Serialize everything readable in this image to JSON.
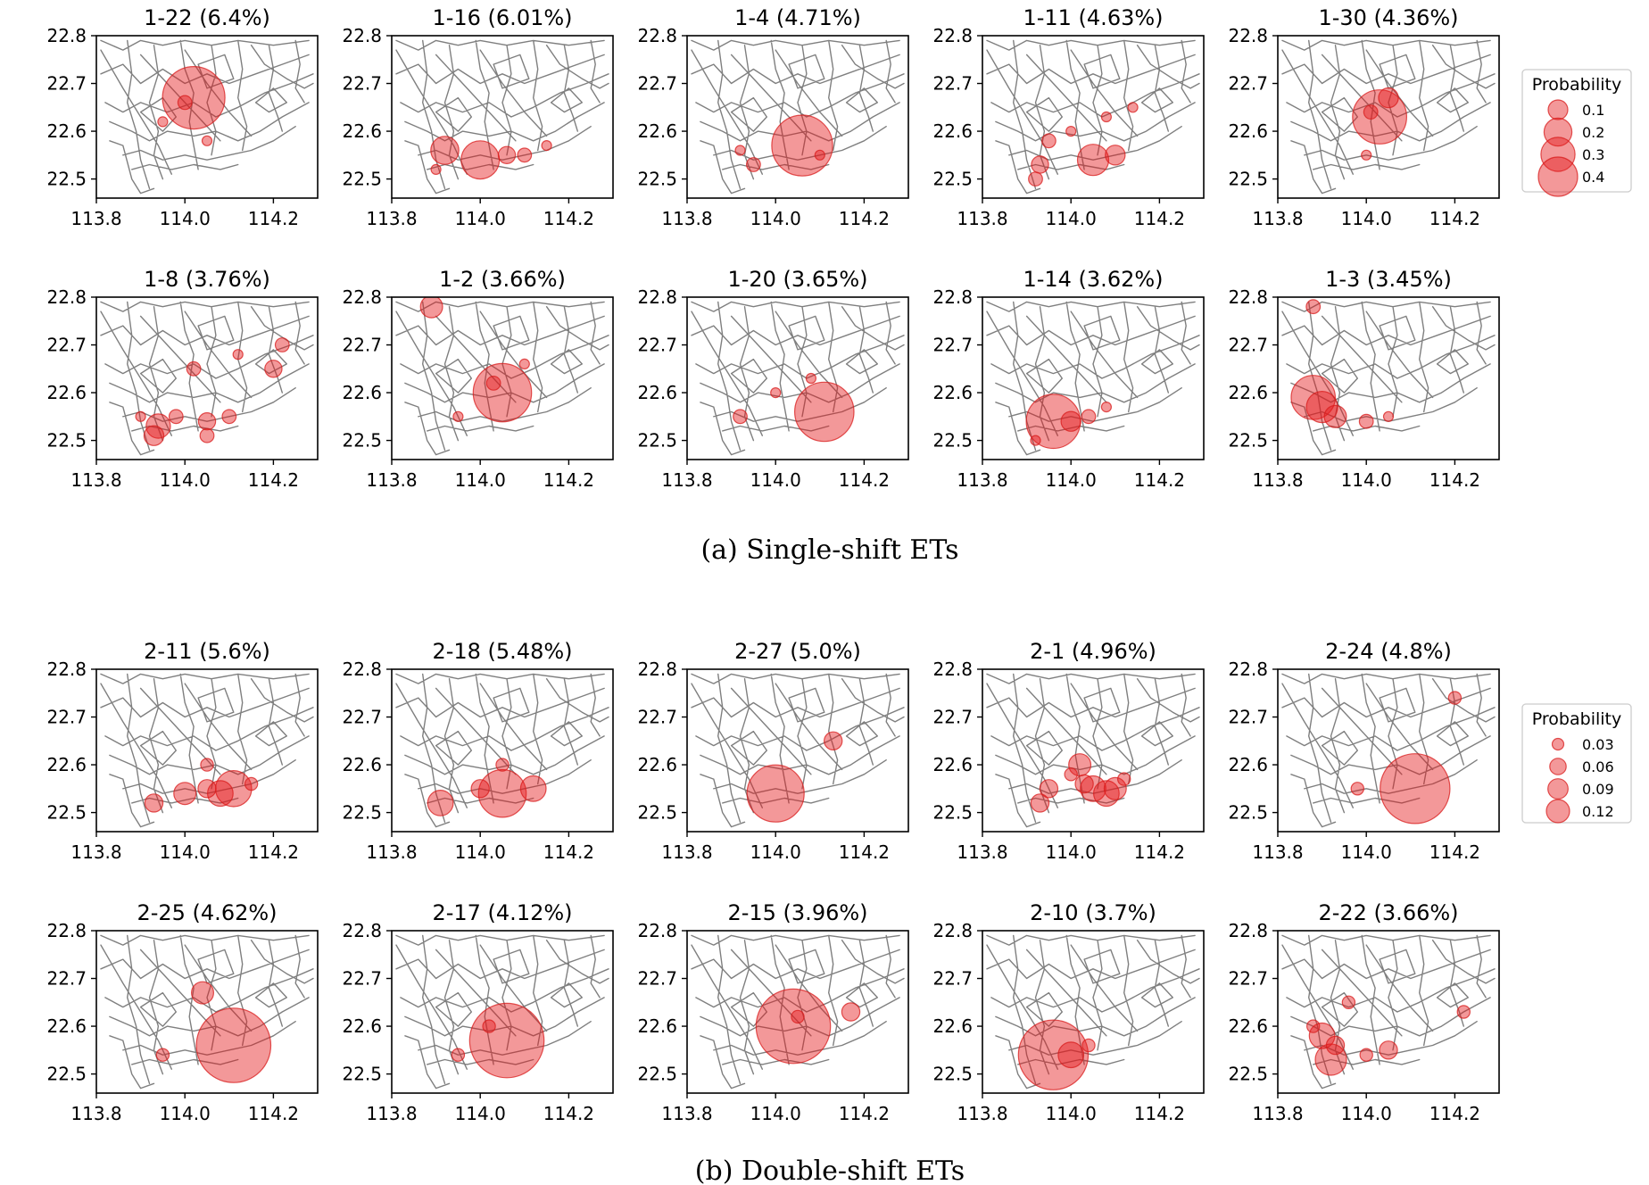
{
  "colors": {
    "bubble": "#e41a1c",
    "road": "#7f7f7f",
    "frame": "#000000"
  },
  "axes": {
    "x_ticks": [
      "113.8",
      "114.0",
      "114.2"
    ],
    "y_ticks": [
      "22.8",
      "22.7",
      "22.6",
      "22.5"
    ],
    "x_values": [
      113.8,
      114.0,
      114.2
    ],
    "y_values": [
      22.8,
      22.7,
      22.6,
      22.5
    ],
    "xlim": [
      113.8,
      114.3
    ],
    "ylim": [
      22.46,
      22.8
    ]
  },
  "captions": {
    "single": "(a) Single-shift ETs",
    "double": "(b) Double-shift ETs"
  },
  "legends": [
    {
      "title": "Probability",
      "labels": [
        "0.1",
        "0.2",
        "0.3",
        "0.4"
      ],
      "values": [
        0.1,
        0.2,
        0.3,
        0.4
      ]
    },
    {
      "title": "Probability",
      "labels": [
        "0.03",
        "0.06",
        "0.09",
        "0.12"
      ],
      "values": [
        0.03,
        0.06,
        0.09,
        0.12
      ]
    }
  ],
  "chart_data": [
    {
      "type": "scatter",
      "group": "single",
      "title": "1-22 (6.4%)",
      "points": [
        [
          114.02,
          22.67,
          0.4
        ],
        [
          114.0,
          22.66,
          0.02
        ],
        [
          113.95,
          22.62,
          0.01
        ],
        [
          114.05,
          22.58,
          0.01
        ]
      ]
    },
    {
      "type": "scatter",
      "group": "single",
      "title": "1-16 (6.01%)",
      "points": [
        [
          114.0,
          22.54,
          0.15
        ],
        [
          113.92,
          22.56,
          0.08
        ],
        [
          114.06,
          22.55,
          0.03
        ],
        [
          114.1,
          22.55,
          0.02
        ],
        [
          113.9,
          22.52,
          0.01
        ],
        [
          114.15,
          22.57,
          0.01
        ]
      ]
    },
    {
      "type": "scatter",
      "group": "single",
      "title": "1-4 (4.71%)",
      "points": [
        [
          114.06,
          22.57,
          0.38
        ],
        [
          113.95,
          22.53,
          0.02
        ],
        [
          114.1,
          22.55,
          0.01
        ],
        [
          113.92,
          22.56,
          0.01
        ]
      ]
    },
    {
      "type": "scatter",
      "group": "single",
      "title": "1-11 (4.63%)",
      "points": [
        [
          114.05,
          22.54,
          0.1
        ],
        [
          114.1,
          22.55,
          0.04
        ],
        [
          113.93,
          22.53,
          0.03
        ],
        [
          113.95,
          22.58,
          0.02
        ],
        [
          113.92,
          22.5,
          0.02
        ],
        [
          114.0,
          22.6,
          0.01
        ],
        [
          114.08,
          22.63,
          0.01
        ],
        [
          114.14,
          22.65,
          0.01
        ]
      ]
    },
    {
      "type": "scatter",
      "group": "single",
      "title": "1-30 (4.36%)",
      "points": [
        [
          114.03,
          22.63,
          0.3
        ],
        [
          114.05,
          22.67,
          0.04
        ],
        [
          114.01,
          22.64,
          0.02
        ],
        [
          114.0,
          22.55,
          0.01
        ]
      ]
    },
    {
      "type": "scatter",
      "group": "single",
      "title": "1-8 (3.76%)",
      "points": [
        [
          113.94,
          22.53,
          0.06
        ],
        [
          113.93,
          22.51,
          0.04
        ],
        [
          114.05,
          22.54,
          0.03
        ],
        [
          114.2,
          22.65,
          0.03
        ],
        [
          114.1,
          22.55,
          0.02
        ],
        [
          114.02,
          22.65,
          0.02
        ],
        [
          113.98,
          22.55,
          0.02
        ],
        [
          114.05,
          22.51,
          0.02
        ],
        [
          114.22,
          22.7,
          0.02
        ],
        [
          113.9,
          22.55,
          0.01
        ],
        [
          114.12,
          22.68,
          0.01
        ]
      ]
    },
    {
      "type": "scatter",
      "group": "single",
      "title": "1-2 (3.66%)",
      "points": [
        [
          114.05,
          22.6,
          0.35
        ],
        [
          113.89,
          22.78,
          0.05
        ],
        [
          114.03,
          22.62,
          0.02
        ],
        [
          113.95,
          22.55,
          0.01
        ],
        [
          114.1,
          22.66,
          0.01
        ]
      ]
    },
    {
      "type": "scatter",
      "group": "single",
      "title": "1-20 (3.65%)",
      "points": [
        [
          114.11,
          22.56,
          0.36
        ],
        [
          113.92,
          22.55,
          0.02
        ],
        [
          114.0,
          22.6,
          0.01
        ],
        [
          114.08,
          22.63,
          0.01
        ]
      ]
    },
    {
      "type": "scatter",
      "group": "single",
      "title": "1-14 (3.62%)",
      "points": [
        [
          113.96,
          22.54,
          0.3
        ],
        [
          114.0,
          22.54,
          0.04
        ],
        [
          114.04,
          22.55,
          0.02
        ],
        [
          114.08,
          22.57,
          0.01
        ],
        [
          113.92,
          22.5,
          0.01
        ]
      ]
    },
    {
      "type": "scatter",
      "group": "single",
      "title": "1-3 (3.45%)",
      "points": [
        [
          113.88,
          22.59,
          0.2
        ],
        [
          113.9,
          22.57,
          0.1
        ],
        [
          113.93,
          22.55,
          0.05
        ],
        [
          114.0,
          22.54,
          0.02
        ],
        [
          113.88,
          22.78,
          0.02
        ],
        [
          114.05,
          22.55,
          0.01
        ]
      ]
    },
    {
      "type": "scatter",
      "group": "double",
      "title": "2-11 (5.6%)",
      "points": [
        [
          114.11,
          22.55,
          0.04
        ],
        [
          114.08,
          22.54,
          0.02
        ],
        [
          114.0,
          22.54,
          0.015
        ],
        [
          114.05,
          22.55,
          0.01
        ],
        [
          113.93,
          22.52,
          0.01
        ],
        [
          114.15,
          22.56,
          0.005
        ],
        [
          114.05,
          22.6,
          0.005
        ]
      ]
    },
    {
      "type": "scatter",
      "group": "double",
      "title": "2-18 (5.48%)",
      "points": [
        [
          114.05,
          22.54,
          0.07
        ],
        [
          114.12,
          22.55,
          0.02
        ],
        [
          113.91,
          22.52,
          0.02
        ],
        [
          114.0,
          22.55,
          0.01
        ],
        [
          114.05,
          22.6,
          0.005
        ]
      ]
    },
    {
      "type": "scatter",
      "group": "double",
      "title": "2-27 (5.0%)",
      "points": [
        [
          114.0,
          22.54,
          0.1
        ],
        [
          114.13,
          22.65,
          0.01
        ]
      ]
    },
    {
      "type": "scatter",
      "group": "double",
      "title": "2-1 (4.96%)",
      "points": [
        [
          114.05,
          22.55,
          0.02
        ],
        [
          114.08,
          22.54,
          0.02
        ],
        [
          114.1,
          22.55,
          0.015
        ],
        [
          114.02,
          22.6,
          0.015
        ],
        [
          113.95,
          22.55,
          0.01
        ],
        [
          113.93,
          22.52,
          0.01
        ],
        [
          114.03,
          22.56,
          0.01
        ],
        [
          114.0,
          22.58,
          0.005
        ],
        [
          114.12,
          22.57,
          0.005
        ]
      ]
    },
    {
      "type": "scatter",
      "group": "double",
      "title": "2-24 (4.8%)",
      "points": [
        [
          114.11,
          22.55,
          0.15
        ],
        [
          114.2,
          22.74,
          0.005
        ],
        [
          113.98,
          22.55,
          0.005
        ]
      ]
    },
    {
      "type": "scatter",
      "group": "double",
      "title": "2-25 (4.62%)",
      "points": [
        [
          114.11,
          22.56,
          0.17
        ],
        [
          114.04,
          22.67,
          0.015
        ],
        [
          113.95,
          22.54,
          0.005
        ]
      ]
    },
    {
      "type": "scatter",
      "group": "double",
      "title": "2-17 (4.12%)",
      "points": [
        [
          114.06,
          22.57,
          0.17
        ],
        [
          114.02,
          22.6,
          0.005
        ],
        [
          113.95,
          22.54,
          0.005
        ]
      ]
    },
    {
      "type": "scatter",
      "group": "double",
      "title": "2-15 (3.96%)",
      "points": [
        [
          114.04,
          22.6,
          0.17
        ],
        [
          114.17,
          22.63,
          0.01
        ],
        [
          114.05,
          22.62,
          0.005
        ]
      ]
    },
    {
      "type": "scatter",
      "group": "double",
      "title": "2-10 (3.7%)",
      "points": [
        [
          113.96,
          22.54,
          0.15
        ],
        [
          114.0,
          22.54,
          0.02
        ],
        [
          114.04,
          22.56,
          0.005
        ]
      ]
    },
    {
      "type": "scatter",
      "group": "double",
      "title": "2-22 (3.66%)",
      "points": [
        [
          113.92,
          22.53,
          0.03
        ],
        [
          113.9,
          22.58,
          0.02
        ],
        [
          113.93,
          22.56,
          0.01
        ],
        [
          114.05,
          22.55,
          0.01
        ],
        [
          114.0,
          22.54,
          0.005
        ],
        [
          114.22,
          22.63,
          0.005
        ],
        [
          113.96,
          22.65,
          0.005
        ],
        [
          113.88,
          22.6,
          0.005
        ]
      ]
    }
  ]
}
